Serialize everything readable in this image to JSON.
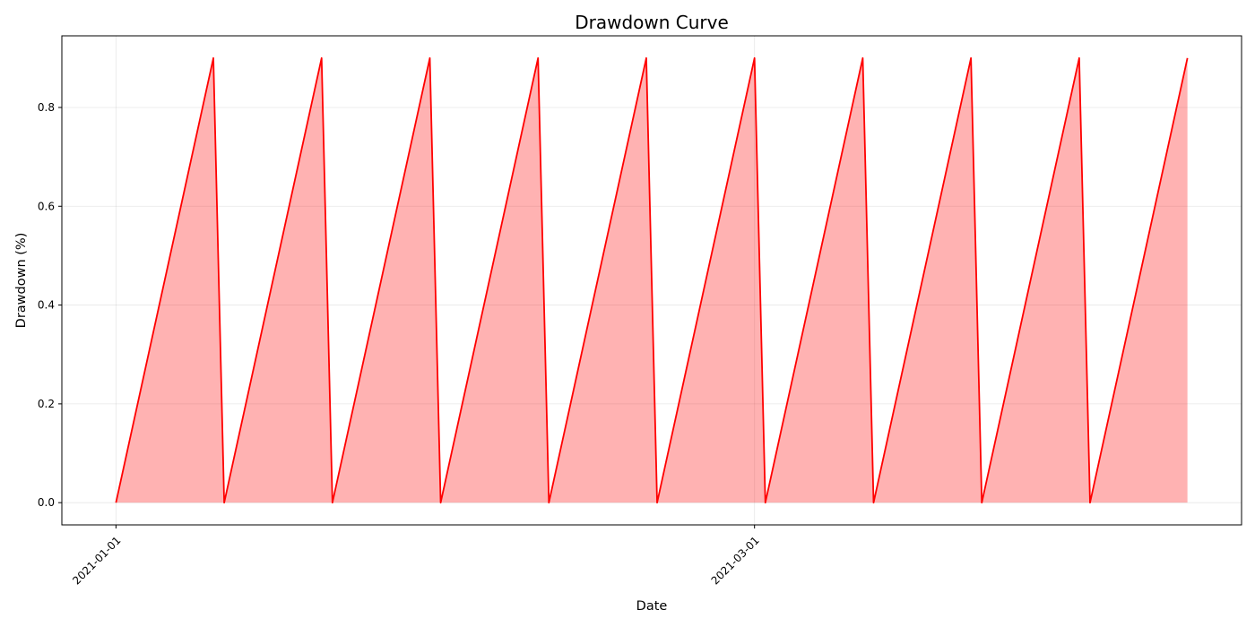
{
  "chart_data": {
    "type": "area",
    "title": "Drawdown Curve",
    "xlabel": "Date",
    "ylabel": "Drawdown (%)",
    "x_ticks": [
      "2021-01-01",
      "2021-03-01"
    ],
    "y_ticks": [
      "0.0",
      "0.2",
      "0.4",
      "0.6",
      "0.8"
    ],
    "xlim": [
      "2020-12-27",
      "2021-04-15"
    ],
    "ylim": [
      -0.045,
      0.945
    ],
    "grid": true,
    "legend": "none",
    "colors": {
      "line": "#ff0000",
      "fill": "#ff0000"
    },
    "series": [
      {
        "x": [
          "2021-01-01",
          "2021-01-10",
          "2021-01-11",
          "2021-01-20",
          "2021-01-21",
          "2021-01-30",
          "2021-01-31",
          "2021-02-09",
          "2021-02-10",
          "2021-02-19",
          "2021-02-20",
          "2021-03-01",
          "2021-03-02",
          "2021-03-11",
          "2021-03-12",
          "2021-03-21",
          "2021-03-22",
          "2021-03-31",
          "2021-04-01",
          "2021-04-10"
        ],
        "values": [
          0,
          0.9,
          0,
          0.9,
          0,
          0.9,
          0,
          0.9,
          0,
          0.9,
          0,
          0.9,
          0,
          0.9,
          0,
          0.9,
          0,
          0.9,
          0,
          0.9
        ]
      }
    ]
  }
}
